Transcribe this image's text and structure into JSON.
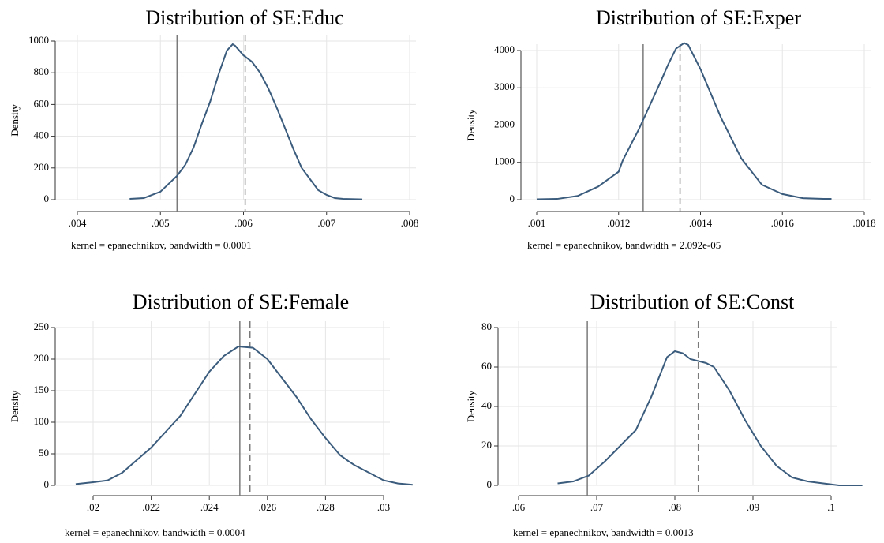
{
  "chart_data": [
    {
      "type": "line",
      "title": "Distribution of SE:Educ",
      "y_label": "Density",
      "note": "kernel = epanechnikov, bandwidth = 0.0001",
      "color": "#3b5c7d",
      "grid": true,
      "x": [
        0.00463,
        0.0048,
        0.005,
        0.0052,
        0.0053,
        0.0054,
        0.0055,
        0.0056,
        0.0057,
        0.0058,
        0.00587,
        0.0059,
        0.006,
        0.0061,
        0.0062,
        0.0063,
        0.0064,
        0.0065,
        0.0066,
        0.0067,
        0.0068,
        0.0069,
        0.007,
        0.0071,
        0.0072,
        0.00743
      ],
      "values": [
        5,
        10,
        50,
        150,
        220,
        330,
        480,
        620,
        790,
        940,
        980,
        970,
        910,
        870,
        800,
        700,
        580,
        450,
        320,
        200,
        130,
        60,
        30,
        10,
        5,
        2
      ],
      "reference_lines": [
        {
          "value": 0.0052,
          "style": "solid"
        },
        {
          "value": 0.00602,
          "style": "dashed"
        }
      ],
      "xlim": [
        0.004,
        0.008
      ],
      "ylim": [
        0,
        1000
      ],
      "xticks": [
        {
          "value": 0.004,
          "label": ".004"
        },
        {
          "value": 0.005,
          "label": ".005"
        },
        {
          "value": 0.006,
          "label": ".006"
        },
        {
          "value": 0.007,
          "label": ".007"
        },
        {
          "value": 0.008,
          "label": ".008"
        }
      ],
      "yticks": [
        0,
        200,
        400,
        600,
        800,
        1000
      ]
    },
    {
      "type": "line",
      "title": "Distribution of SE:Exper",
      "y_label": "Density",
      "note": "kernel = epanechnikov, bandwidth =  2.092e-05",
      "color": "#3b5c7d",
      "grid": true,
      "x": [
        0.001,
        0.00105,
        0.0011,
        0.00115,
        0.0012,
        0.00121,
        0.00125,
        0.0013,
        0.00132,
        0.00134,
        0.00136,
        0.00137,
        0.0014,
        0.00145,
        0.0015,
        0.00155,
        0.0016,
        0.00165,
        0.0017,
        0.00172
      ],
      "values": [
        10,
        20,
        100,
        350,
        750,
        1050,
        1900,
        3100,
        3600,
        4050,
        4200,
        4150,
        3500,
        2200,
        1100,
        400,
        150,
        40,
        20,
        20
      ],
      "reference_lines": [
        {
          "value": 0.00126,
          "style": "solid"
        },
        {
          "value": 0.00135,
          "style": "dashed"
        }
      ],
      "xlim": [
        0.001,
        0.0018
      ],
      "ylim": [
        0,
        4000
      ],
      "xticks": [
        {
          "value": 0.001,
          "label": ".001"
        },
        {
          "value": 0.0012,
          "label": ".0012"
        },
        {
          "value": 0.0014,
          "label": ".0014"
        },
        {
          "value": 0.0016,
          "label": ".0016"
        },
        {
          "value": 0.0018,
          "label": ".0018"
        }
      ],
      "yticks": [
        0,
        1000,
        2000,
        3000,
        4000
      ]
    },
    {
      "type": "line",
      "title": "Distribution of SE:Female",
      "y_label": "Density",
      "note": "kernel = epanechnikov, bandwidth = 0.0004",
      "color": "#3b5c7d",
      "grid": true,
      "x": [
        0.0194,
        0.02,
        0.0205,
        0.021,
        0.0215,
        0.022,
        0.0225,
        0.023,
        0.0235,
        0.024,
        0.0245,
        0.025,
        0.0255,
        0.026,
        0.0265,
        0.027,
        0.0275,
        0.028,
        0.0285,
        0.0288,
        0.029,
        0.0295,
        0.03,
        0.0305,
        0.031
      ],
      "values": [
        2,
        5,
        8,
        20,
        40,
        60,
        85,
        110,
        145,
        180,
        205,
        220,
        218,
        200,
        170,
        140,
        105,
        75,
        48,
        38,
        32,
        20,
        8,
        3,
        1
      ],
      "reference_lines": [
        {
          "value": 0.02505,
          "style": "solid"
        },
        {
          "value": 0.0254,
          "style": "dashed"
        }
      ],
      "xlim": [
        0.02,
        0.03
      ],
      "ylim": [
        0,
        250
      ],
      "xticks": [
        {
          "value": 0.02,
          "label": ".02"
        },
        {
          "value": 0.022,
          "label": ".022"
        },
        {
          "value": 0.024,
          "label": ".024"
        },
        {
          "value": 0.026,
          "label": ".026"
        },
        {
          "value": 0.028,
          "label": ".028"
        },
        {
          "value": 0.03,
          "label": ".03"
        }
      ],
      "yticks": [
        0,
        50,
        100,
        150,
        200,
        250
      ]
    },
    {
      "type": "line",
      "title": "Distribution of SE:Const",
      "y_label": "Density",
      "note": "kernel = epanechnikov, bandwidth = 0.0013",
      "color": "#3b5c7d",
      "grid": true,
      "x": [
        0.065,
        0.067,
        0.069,
        0.071,
        0.073,
        0.075,
        0.077,
        0.079,
        0.08,
        0.081,
        0.082,
        0.084,
        0.085,
        0.087,
        0.089,
        0.091,
        0.093,
        0.095,
        0.097,
        0.099,
        0.101,
        0.104
      ],
      "values": [
        1,
        2,
        5,
        12,
        20,
        28,
        45,
        65,
        68,
        67,
        64,
        62,
        60,
        48,
        33,
        20,
        10,
        4,
        2,
        1,
        0,
        0
      ],
      "reference_lines": [
        {
          "value": 0.0688,
          "style": "solid"
        },
        {
          "value": 0.083,
          "style": "dashed"
        }
      ],
      "xlim": [
        0.06,
        0.1
      ],
      "ylim": [
        0,
        80
      ],
      "xticks": [
        {
          "value": 0.06,
          "label": ".06"
        },
        {
          "value": 0.07,
          "label": ".07"
        },
        {
          "value": 0.08,
          "label": ".08"
        },
        {
          "value": 0.09,
          "label": ".09"
        },
        {
          "value": 0.1,
          "label": ".1"
        }
      ],
      "yticks": [
        0,
        20,
        40,
        60,
        80
      ]
    }
  ]
}
